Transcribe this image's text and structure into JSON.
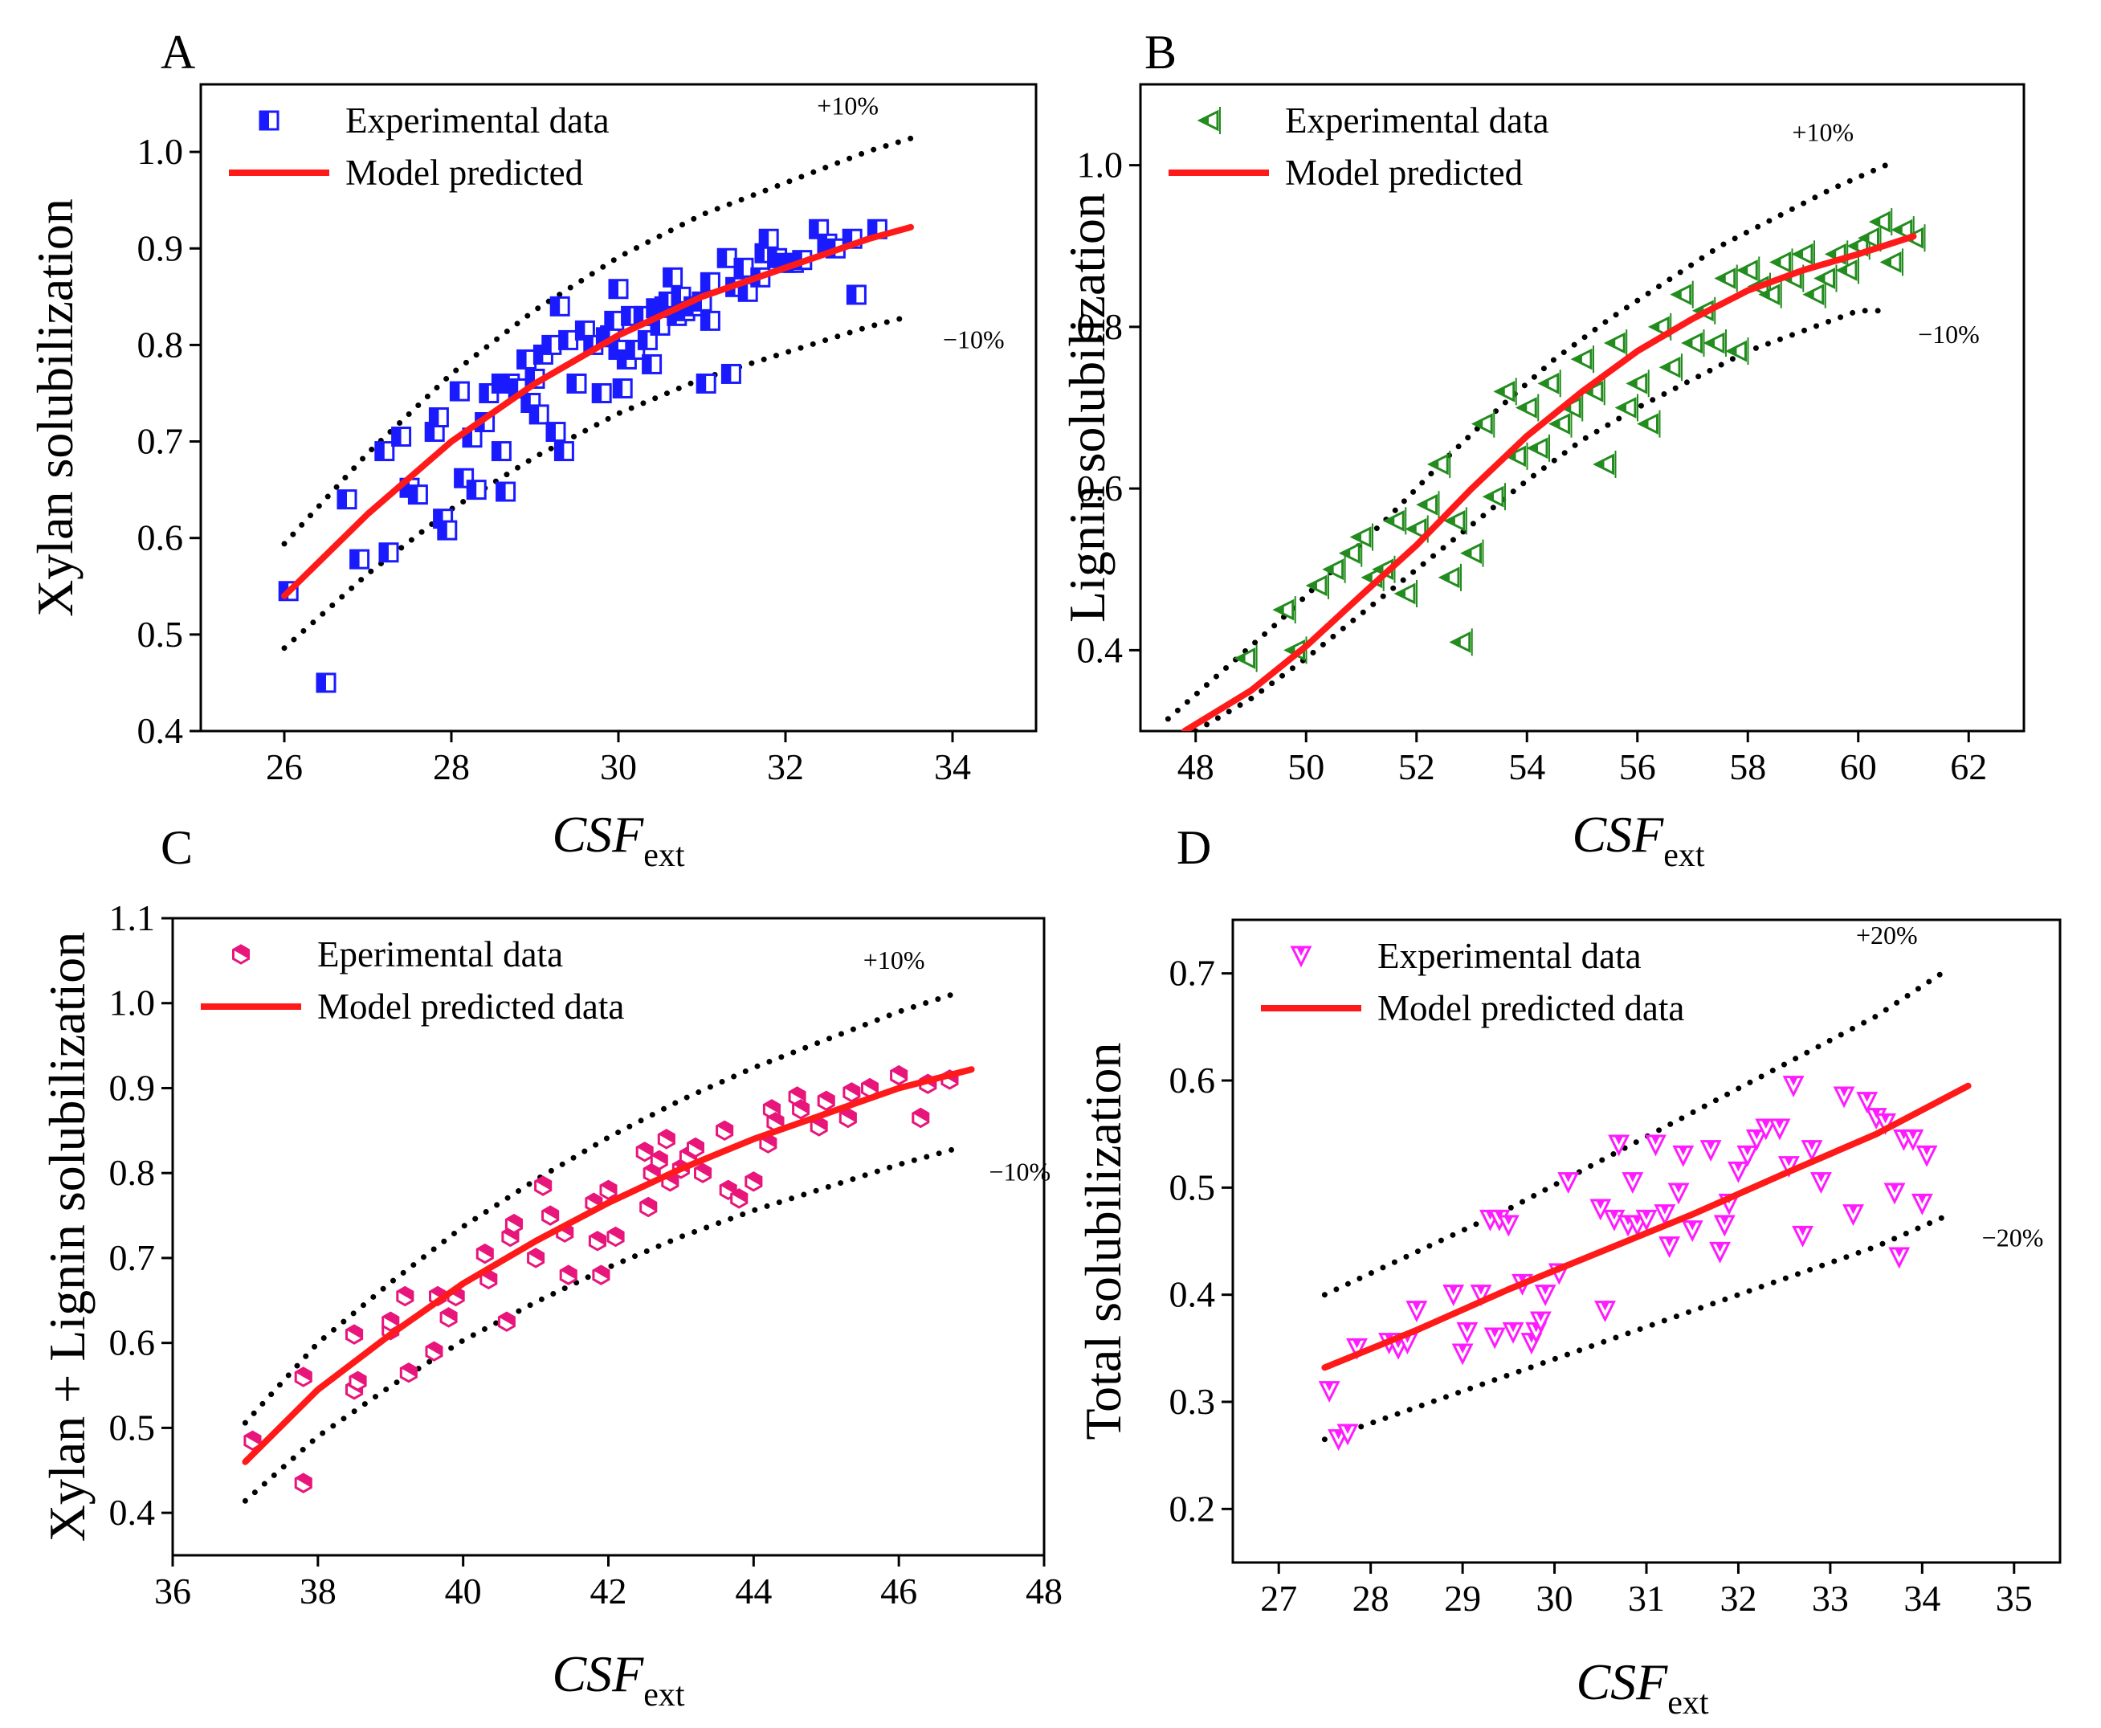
{
  "figure": {
    "panel_count": 4
  },
  "chart_data": [
    {
      "type": "scatter",
      "panel": "A",
      "xlabel": "CSF",
      "xlabel_sub": "ext",
      "ylabel": "Xylan solubilization",
      "xlim": [
        25,
        35
      ],
      "ylim": [
        0.4,
        1.07
      ],
      "xticks": [
        26,
        28,
        30,
        32,
        34
      ],
      "yticks": [
        0.4,
        0.5,
        0.6,
        0.7,
        0.8,
        0.9,
        1.0
      ],
      "tick_decimals": 1,
      "legend": {
        "placement": "top-left",
        "experimental": "Experimental data",
        "model": "Model predicted"
      },
      "band_labels": {
        "upper": "+10%",
        "lower": "−10%"
      },
      "band_range": [
        26,
        33.5
      ],
      "model_line": {
        "x": [
          26,
          27,
          28,
          29,
          30,
          31,
          32,
          33,
          33.5
        ],
        "y": [
          0.54,
          0.625,
          0.7,
          0.76,
          0.81,
          0.85,
          0.88,
          0.91,
          0.922
        ]
      },
      "upper_band": {
        "x": [
          26,
          27,
          28,
          29,
          30,
          31,
          32,
          33,
          33.5
        ],
        "y": [
          0.594,
          0.688,
          0.77,
          0.836,
          0.891,
          0.935,
          0.968,
          1.001,
          1.014
        ]
      },
      "lower_band": {
        "x": [
          26,
          27,
          28,
          29,
          30,
          31,
          32,
          33,
          33.5
        ],
        "y": [
          0.486,
          0.563,
          0.63,
          0.684,
          0.729,
          0.765,
          0.792,
          0.819,
          0.83
        ]
      },
      "points": {
        "marker": "square",
        "color": "#1a1aff",
        "x": [
          26.05,
          26.5,
          26.75,
          26.9,
          27.2,
          27.25,
          27.4,
          27.5,
          27.6,
          27.8,
          27.85,
          27.9,
          27.95,
          28.1,
          28.15,
          28.25,
          28.3,
          28.4,
          28.45,
          28.6,
          28.6,
          28.65,
          28.7,
          28.8,
          28.9,
          28.95,
          29.0,
          29.05,
          29.1,
          29.2,
          29.25,
          29.3,
          29.35,
          29.4,
          29.5,
          29.6,
          29.7,
          29.8,
          29.85,
          29.9,
          29.95,
          30.0,
          30.0,
          30.05,
          30.1,
          30.15,
          30.2,
          30.3,
          30.35,
          30.4,
          30.45,
          30.5,
          30.55,
          30.6,
          30.65,
          30.7,
          30.75,
          30.8,
          30.9,
          31.0,
          31.05,
          31.1,
          31.1,
          31.3,
          31.35,
          31.4,
          31.5,
          31.55,
          31.7,
          31.75,
          31.8,
          31.9,
          32.0,
          32.1,
          32.2,
          32.4,
          32.5,
          32.6,
          32.8,
          32.85,
          33.1
        ],
        "y": [
          0.545,
          0.45,
          0.64,
          0.578,
          0.69,
          0.585,
          0.705,
          0.652,
          0.645,
          0.71,
          0.725,
          0.62,
          0.608,
          0.752,
          0.662,
          0.704,
          0.65,
          0.72,
          0.75,
          0.76,
          0.69,
          0.648,
          0.76,
          0.755,
          0.785,
          0.74,
          0.765,
          0.728,
          0.79,
          0.8,
          0.71,
          0.84,
          0.69,
          0.805,
          0.76,
          0.815,
          0.8,
          0.75,
          0.808,
          0.81,
          0.825,
          0.858,
          0.795,
          0.755,
          0.785,
          0.83,
          0.795,
          0.83,
          0.805,
          0.78,
          0.838,
          0.82,
          0.84,
          0.845,
          0.87,
          0.83,
          0.85,
          0.835,
          0.84,
          0.845,
          0.76,
          0.865,
          0.825,
          0.89,
          0.77,
          0.86,
          0.88,
          0.855,
          0.87,
          0.895,
          0.91,
          0.89,
          0.885,
          0.885,
          0.888,
          0.92,
          0.905,
          0.9,
          0.91,
          0.852,
          0.92
        ]
      }
    },
    {
      "type": "scatter",
      "panel": "B",
      "xlabel": "CSF",
      "xlabel_sub": "ext",
      "ylabel": "Lignin solubilization",
      "xlim": [
        47,
        63
      ],
      "ylim": [
        0.3,
        1.1
      ],
      "xticks": [
        48,
        50,
        52,
        54,
        56,
        58,
        60,
        62
      ],
      "yticks": [
        0.4,
        0.6,
        0.8,
        1.0
      ],
      "tick_decimals": 1,
      "legend": {
        "placement": "top-left",
        "experimental": "Experimental data",
        "model": "Model predicted"
      },
      "band_labels": {
        "upper": "+10%",
        "lower": "−10%"
      },
      "band_range": [
        47.5,
        60.5
      ],
      "model_line": {
        "x": [
          47.8,
          49,
          50,
          51,
          52,
          53,
          54,
          55,
          56,
          57,
          58,
          59,
          60,
          61
        ],
        "y": [
          0.3,
          0.35,
          0.405,
          0.468,
          0.53,
          0.6,
          0.665,
          0.72,
          0.77,
          0.81,
          0.845,
          0.87,
          0.89,
          0.912
        ]
      },
      "upper_band": {
        "x": [
          47.5,
          48.5,
          49.5,
          50.5,
          51.5,
          52.5,
          53.5,
          54.5,
          55.5,
          56.5,
          57.5,
          58.5,
          59.5,
          60.5
        ],
        "y": [
          0.315,
          0.375,
          0.435,
          0.5,
          0.565,
          0.635,
          0.7,
          0.76,
          0.81,
          0.855,
          0.9,
          0.935,
          0.97,
          1.0
        ]
      },
      "lower_band": {
        "x": [
          48,
          49,
          50,
          51,
          52,
          53,
          54,
          55,
          56,
          57,
          58,
          59,
          60,
          60.5
        ],
        "y": [
          0.3,
          0.34,
          0.39,
          0.445,
          0.5,
          0.555,
          0.61,
          0.66,
          0.7,
          0.735,
          0.77,
          0.795,
          0.82,
          0.82
        ]
      },
      "points": {
        "marker": "triangle-left",
        "color": "#238c1e",
        "x": [
          48.9,
          49.6,
          49.8,
          50.2,
          50.5,
          50.8,
          51.0,
          51.2,
          51.4,
          51.6,
          51.8,
          52.0,
          52.2,
          52.4,
          52.6,
          52.7,
          52.8,
          53.0,
          53.2,
          53.4,
          53.6,
          53.8,
          54.0,
          54.2,
          54.4,
          54.6,
          54.8,
          55.0,
          55.2,
          55.4,
          55.6,
          55.8,
          56.0,
          56.2,
          56.4,
          56.6,
          56.8,
          57.0,
          57.2,
          57.4,
          57.6,
          57.8,
          58.0,
          58.2,
          58.4,
          58.6,
          58.8,
          59.0,
          59.2,
          59.4,
          59.6,
          59.8,
          60.0,
          60.2,
          60.4,
          60.6,
          60.8,
          61.0
        ],
        "y": [
          0.39,
          0.45,
          0.4,
          0.48,
          0.5,
          0.52,
          0.54,
          0.49,
          0.5,
          0.56,
          0.47,
          0.55,
          0.58,
          0.63,
          0.49,
          0.56,
          0.41,
          0.52,
          0.68,
          0.59,
          0.72,
          0.64,
          0.7,
          0.65,
          0.73,
          0.68,
          0.7,
          0.76,
          0.72,
          0.63,
          0.78,
          0.7,
          0.73,
          0.68,
          0.8,
          0.75,
          0.84,
          0.78,
          0.82,
          0.78,
          0.86,
          0.77,
          0.87,
          0.85,
          0.84,
          0.88,
          0.86,
          0.89,
          0.84,
          0.86,
          0.89,
          0.87,
          0.9,
          0.91,
          0.93,
          0.88,
          0.92,
          0.91
        ]
      }
    },
    {
      "type": "scatter",
      "panel": "C",
      "xlabel": "CSF",
      "xlabel_sub": "ext",
      "ylabel": "Xylan + Lignin solubilization",
      "xlim": [
        36,
        48
      ],
      "ylim": [
        0.35,
        1.1
      ],
      "xticks": [
        36,
        38,
        40,
        42,
        44,
        46,
        48
      ],
      "yticks": [
        0.4,
        0.5,
        0.6,
        0.7,
        0.8,
        0.9,
        1.0,
        1.1
      ],
      "tick_decimals": 1,
      "legend": {
        "placement": "top-left",
        "experimental": "Eperimental data",
        "model": "Model predicted data"
      },
      "band_labels": {
        "upper": "+10%",
        "lower": "−10%"
      },
      "band_range": [
        37,
        46.8
      ],
      "model_line": {
        "x": [
          37,
          38,
          39,
          40,
          41,
          42,
          43,
          44,
          45,
          46,
          47
        ],
        "y": [
          0.46,
          0.545,
          0.61,
          0.67,
          0.72,
          0.765,
          0.805,
          0.84,
          0.87,
          0.9,
          0.922
        ]
      },
      "upper_band": {
        "x": [
          37,
          38,
          39,
          40,
          41,
          42,
          43,
          44,
          45,
          46,
          46.8
        ],
        "y": [
          0.506,
          0.6,
          0.671,
          0.737,
          0.792,
          0.842,
          0.886,
          0.924,
          0.957,
          0.99,
          1.012
        ]
      },
      "lower_band": {
        "x": [
          37,
          38,
          39,
          40,
          41,
          42,
          43,
          44,
          45,
          46,
          46.8
        ],
        "y": [
          0.414,
          0.49,
          0.549,
          0.603,
          0.648,
          0.689,
          0.725,
          0.756,
          0.783,
          0.81,
          0.829
        ]
      },
      "points": {
        "marker": "hexagon",
        "color": "#e8157a",
        "x": [
          37.1,
          37.8,
          37.8,
          38.5,
          38.5,
          38.55,
          39.0,
          39.0,
          39.2,
          39.25,
          39.6,
          39.65,
          39.8,
          39.9,
          40.3,
          40.35,
          40.6,
          40.65,
          40.7,
          41.0,
          41.1,
          41.2,
          41.4,
          41.45,
          41.8,
          41.85,
          41.9,
          42.0,
          42.1,
          42.5,
          42.55,
          42.6,
          42.7,
          42.8,
          42.85,
          43.0,
          43.1,
          43.2,
          43.3,
          43.6,
          43.65,
          43.8,
          44.0,
          44.2,
          44.25,
          44.3,
          44.6,
          44.65,
          44.9,
          45.0,
          45.3,
          45.35,
          45.6,
          46.0,
          46.3,
          46.4,
          46.7
        ],
        "y": [
          0.485,
          0.435,
          0.56,
          0.545,
          0.61,
          0.555,
          0.615,
          0.625,
          0.655,
          0.565,
          0.59,
          0.655,
          0.63,
          0.655,
          0.705,
          0.675,
          0.625,
          0.725,
          0.74,
          0.7,
          0.785,
          0.75,
          0.73,
          0.68,
          0.765,
          0.72,
          0.68,
          0.78,
          0.725,
          0.825,
          0.76,
          0.8,
          0.815,
          0.84,
          0.79,
          0.805,
          0.82,
          0.83,
          0.8,
          0.85,
          0.78,
          0.77,
          0.79,
          0.835,
          0.875,
          0.86,
          0.89,
          0.875,
          0.855,
          0.885,
          0.865,
          0.895,
          0.9,
          0.915,
          0.865,
          0.905,
          0.91
        ]
      }
    },
    {
      "type": "scatter",
      "panel": "D",
      "xlabel": "CSF",
      "xlabel_sub": "ext",
      "ylabel": "Total solubilization",
      "xlim": [
        26.5,
        35.5
      ],
      "ylim": [
        0.15,
        0.75
      ],
      "xticks": [
        27,
        28,
        29,
        30,
        31,
        32,
        33,
        34,
        35
      ],
      "yticks": [
        0.2,
        0.3,
        0.4,
        0.5,
        0.6,
        0.7
      ],
      "tick_decimals": 1,
      "legend": {
        "placement": "top-left",
        "experimental": "Experimental data",
        "model": "Model predicted data"
      },
      "band_labels": {
        "upper": "+20%",
        "lower": "−20%"
      },
      "band_range": [
        27.5,
        34.3
      ],
      "model_line": {
        "x": [
          27.5,
          28.5,
          29.5,
          30.5,
          31.5,
          32.5,
          33.5,
          34.5
        ],
        "y": [
          0.332,
          0.367,
          0.405,
          0.44,
          0.475,
          0.513,
          0.55,
          0.595
        ]
      },
      "upper_band": {
        "x": [
          27.5,
          28.5,
          29.5,
          30.5,
          31.5,
          32.5,
          33.5,
          34.3
        ],
        "y": [
          0.4,
          0.44,
          0.48,
          0.525,
          0.57,
          0.615,
          0.66,
          0.705
        ]
      },
      "lower_band": {
        "x": [
          27.5,
          28.5,
          29.5,
          30.5,
          31.5,
          32.5,
          33.5,
          34.3
        ],
        "y": [
          0.265,
          0.295,
          0.325,
          0.355,
          0.385,
          0.415,
          0.445,
          0.475
        ]
      },
      "points": {
        "marker": "triangle-down",
        "color": "#ff1aff",
        "x": [
          27.55,
          27.65,
          27.75,
          27.85,
          28.2,
          28.3,
          28.4,
          28.5,
          28.9,
          29.0,
          29.05,
          29.2,
          29.3,
          29.35,
          29.4,
          29.5,
          29.55,
          29.65,
          29.75,
          29.8,
          29.85,
          29.9,
          30.05,
          30.15,
          30.5,
          30.55,
          30.65,
          30.7,
          30.8,
          30.85,
          30.9,
          31.0,
          31.1,
          31.2,
          31.25,
          31.35,
          31.4,
          31.5,
          31.7,
          31.8,
          31.85,
          31.9,
          32.0,
          32.1,
          32.2,
          32.3,
          32.45,
          32.55,
          32.6,
          32.7,
          32.8,
          32.9,
          33.15,
          33.25,
          33.4,
          33.5,
          33.6,
          33.7,
          33.75,
          33.8,
          33.9,
          34.0,
          34.05
        ],
        "y": [
          0.31,
          0.265,
          0.27,
          0.35,
          0.355,
          0.35,
          0.355,
          0.385,
          0.4,
          0.345,
          0.365,
          0.4,
          0.47,
          0.36,
          0.47,
          0.465,
          0.365,
          0.41,
          0.355,
          0.365,
          0.375,
          0.4,
          0.42,
          0.505,
          0.48,
          0.385,
          0.47,
          0.54,
          0.465,
          0.505,
          0.465,
          0.47,
          0.54,
          0.475,
          0.445,
          0.495,
          0.53,
          0.46,
          0.535,
          0.44,
          0.465,
          0.485,
          0.515,
          0.53,
          0.545,
          0.555,
          0.555,
          0.52,
          0.595,
          0.455,
          0.535,
          0.505,
          0.585,
          0.475,
          0.58,
          0.565,
          0.56,
          0.495,
          0.435,
          0.545,
          0.545,
          0.485,
          0.53
        ]
      }
    }
  ]
}
